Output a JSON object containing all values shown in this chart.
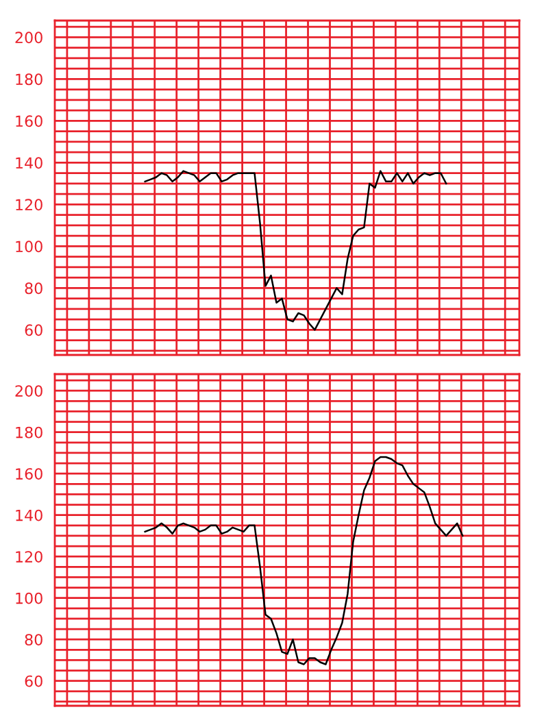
{
  "chart_data": [
    {
      "type": "line",
      "grid": true,
      "tick_labels": "y",
      "ylim": [
        48,
        208
      ],
      "yticks": [
        {
          "value": 50,
          "label": null
        },
        {
          "value": 55,
          "label": null
        },
        60,
        {
          "value": 65,
          "label": null
        },
        {
          "value": 70,
          "label": null
        },
        {
          "value": 75,
          "label": null
        },
        80,
        {
          "value": 85,
          "label": null
        },
        {
          "value": 90,
          "label": null
        },
        {
          "value": 95,
          "label": null
        },
        100,
        {
          "value": 105,
          "label": null
        },
        {
          "value": 110,
          "label": null
        },
        {
          "value": 115,
          "label": null
        },
        120,
        {
          "value": 125,
          "label": null
        },
        {
          "value": 130,
          "label": null
        },
        {
          "value": 135,
          "label": null
        },
        140,
        {
          "value": 145,
          "label": null
        },
        {
          "value": 150,
          "label": null
        },
        {
          "value": 155,
          "label": null
        },
        160,
        {
          "value": 165,
          "label": null
        },
        {
          "value": 170,
          "label": null
        },
        {
          "value": 175,
          "label": null
        },
        180,
        {
          "value": 185,
          "label": null
        },
        {
          "value": 190,
          "label": null
        },
        {
          "value": 195,
          "label": null
        },
        200,
        {
          "value": 205,
          "label": null
        }
      ],
      "categories": [
        null,
        null,
        null,
        null,
        null,
        null,
        null,
        null,
        null,
        null,
        null,
        null,
        null,
        null,
        null,
        null,
        null,
        null,
        null,
        null,
        null,
        null,
        null,
        null,
        null,
        null,
        null,
        null,
        null,
        null,
        null,
        null,
        null,
        null,
        null,
        null,
        null,
        null,
        null,
        null,
        null,
        null,
        null,
        null,
        null,
        null,
        null,
        null,
        null,
        null,
        null,
        null,
        null,
        null,
        null,
        null
      ],
      "series": [
        {
          "color": "#000000",
          "values": [
            131,
            132,
            133,
            135,
            134,
            131,
            133,
            136,
            135,
            134,
            131,
            133,
            135,
            135,
            131,
            132,
            134,
            135,
            135,
            135,
            135,
            111,
            81,
            86,
            73,
            75,
            65,
            64,
            68,
            67,
            63,
            60,
            65,
            70,
            75,
            80,
            77,
            94,
            105,
            108,
            109,
            130,
            128,
            136,
            131,
            131,
            135,
            131,
            135,
            130,
            133,
            135,
            134,
            135,
            135,
            130
          ]
        }
      ]
    },
    {
      "type": "line",
      "grid": true,
      "tick_labels": "y",
      "ylim": [
        48,
        208
      ],
      "yticks": [
        {
          "value": 50,
          "label": null
        },
        {
          "value": 55,
          "label": null
        },
        60,
        {
          "value": 65,
          "label": null
        },
        {
          "value": 70,
          "label": null
        },
        {
          "value": 75,
          "label": null
        },
        80,
        {
          "value": 85,
          "label": null
        },
        {
          "value": 90,
          "label": null
        },
        {
          "value": 95,
          "label": null
        },
        100,
        {
          "value": 105,
          "label": null
        },
        {
          "value": 110,
          "label": null
        },
        {
          "value": 115,
          "label": null
        },
        120,
        {
          "value": 125,
          "label": null
        },
        {
          "value": 130,
          "label": null
        },
        {
          "value": 135,
          "label": null
        },
        140,
        {
          "value": 145,
          "label": null
        },
        {
          "value": 150,
          "label": null
        },
        {
          "value": 155,
          "label": null
        },
        160,
        {
          "value": 165,
          "label": null
        },
        {
          "value": 170,
          "label": null
        },
        {
          "value": 175,
          "label": null
        },
        180,
        {
          "value": 185,
          "label": null
        },
        {
          "value": 190,
          "label": null
        },
        {
          "value": 195,
          "label": null
        },
        200,
        {
          "value": 205,
          "label": null
        }
      ],
      "categories": [
        null,
        null,
        null,
        null,
        null,
        null,
        null,
        null,
        null,
        null,
        null,
        null,
        null,
        null,
        null,
        null,
        null,
        null,
        null,
        null,
        null,
        null,
        null,
        null,
        null,
        null,
        null,
        null,
        null,
        null,
        null,
        null,
        null,
        null,
        null,
        null,
        null,
        null,
        null,
        null,
        null,
        null,
        null,
        null,
        null,
        null,
        null,
        null,
        null,
        null,
        null,
        null,
        null,
        null,
        null,
        null,
        null,
        null,
        null
      ],
      "series": [
        {
          "color": "#000000",
          "values": [
            132,
            133,
            134,
            136,
            134,
            131,
            135,
            136,
            135,
            134,
            132,
            133,
            135,
            135,
            131,
            132,
            134,
            133,
            132,
            135,
            135,
            115,
            92,
            90,
            83,
            74,
            73,
            80,
            69,
            68,
            71,
            71,
            69,
            68,
            75,
            81,
            88,
            102,
            127,
            140,
            152,
            158,
            166,
            168,
            168,
            167,
            165,
            164,
            159,
            155,
            153,
            151,
            144,
            136,
            133,
            130,
            133,
            136,
            130
          ]
        }
      ]
    }
  ]
}
